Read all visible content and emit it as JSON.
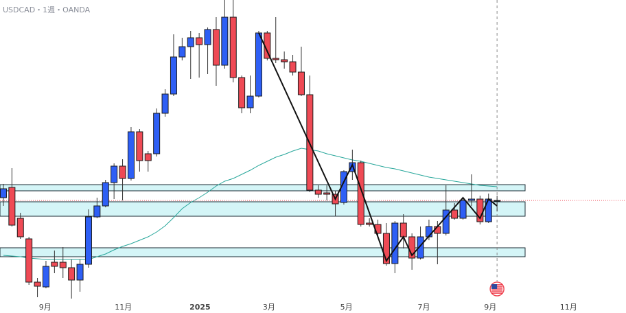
{
  "chart_data": {
    "type": "candlestick",
    "title": "USDCAD・1週・OANDA",
    "up_color": "#2e5ff5",
    "down_color": "#ef4a55",
    "ma_color": "#26a69a",
    "zone_color": "#d4f5f7",
    "xlim": [
      -0.4,
      73.15
    ],
    "ylim": [
      1.348,
      1.48
    ],
    "xticks": [
      {
        "value": 4.9,
        "label": "9月"
      },
      {
        "value": 14.1,
        "label": "11月"
      },
      {
        "value": 23.1,
        "label": "2025"
      },
      {
        "value": 31.2,
        "label": "3月"
      },
      {
        "value": 40.3,
        "label": "5月"
      },
      {
        "value": 49.4,
        "label": "7月"
      },
      {
        "value": 57.2,
        "label": "9月"
      },
      {
        "value": 66.4,
        "label": "11月"
      }
    ],
    "open": [
      1.3936,
      1.3981,
      1.3846,
      1.3756,
      1.3567,
      1.3546,
      1.3654,
      1.3654,
      1.363,
      1.3576,
      1.3645,
      1.3852,
      1.39,
      1.4002,
      1.4074,
      1.402,
      1.4224,
      1.4128,
      1.4128,
      1.4305,
      1.4389,
      1.4551,
      1.4596,
      1.4635,
      1.4605,
      1.4671,
      1.4515,
      1.4725,
      1.4461,
      1.4329,
      1.438,
      1.4656,
      1.4545,
      1.4539,
      1.453,
      1.4485,
      1.4386,
      1.3969,
      1.3957,
      1.3951,
      1.3915,
      1.405,
      1.4089,
      1.3825,
      1.3819,
      1.378,
      1.3648,
      1.3825,
      1.3765,
      1.3672,
      1.3765,
      1.381,
      1.378,
      1.3882,
      1.3846,
      1.3924,
      1.393,
      1.3831,
      1.3921
    ],
    "high": [
      1.3996,
      1.4065,
      1.387,
      1.3765,
      1.3585,
      1.366,
      1.3705,
      1.372,
      1.3666,
      1.3666,
      1.3885,
      1.3936,
      1.4014,
      1.4086,
      1.4104,
      1.4245,
      1.4236,
      1.414,
      1.4326,
      1.441,
      1.465,
      1.4635,
      1.4665,
      1.4656,
      1.468,
      1.4725,
      1.48,
      1.48,
      1.447,
      1.447,
      1.4665,
      1.4665,
      1.4725,
      1.4575,
      1.456,
      1.4596,
      1.447,
      1.399,
      1.399,
      1.3966,
      1.4056,
      1.4146,
      1.4098,
      1.3846,
      1.384,
      1.3825,
      1.3834,
      1.3864,
      1.378,
      1.381,
      1.384,
      1.3834,
      1.399,
      1.3912,
      1.3939,
      1.4038,
      1.3945,
      1.3954,
      1.3945
    ],
    "low": [
      1.39,
      1.381,
      1.3756,
      1.3555,
      1.3501,
      1.354,
      1.3606,
      1.3585,
      1.3495,
      1.3525,
      1.363,
      1.3846,
      1.3894,
      1.393,
      1.3924,
      1.4011,
      1.405,
      1.405,
      1.4116,
      1.429,
      1.438,
      1.4536,
      1.4455,
      1.4461,
      1.4476,
      1.4425,
      1.45,
      1.444,
      1.4305,
      1.4305,
      1.4374,
      1.4536,
      1.4524,
      1.45,
      1.447,
      1.438,
      1.396,
      1.3936,
      1.3924,
      1.3855,
      1.3906,
      1.4014,
      1.381,
      1.381,
      1.3765,
      1.3639,
      1.3606,
      1.3714,
      1.3621,
      1.3666,
      1.375,
      1.3645,
      1.3771,
      1.384,
      1.384,
      1.39,
      1.3819,
      1.3825,
      1.3876
    ],
    "close": [
      1.3975,
      1.3816,
      1.3765,
      1.3567,
      1.3549,
      1.3636,
      1.3636,
      1.363,
      1.3576,
      1.3645,
      1.3852,
      1.39,
      1.4002,
      1.4074,
      1.402,
      1.4224,
      1.4098,
      1.4098,
      1.4305,
      1.4389,
      1.4551,
      1.4596,
      1.4635,
      1.4605,
      1.4671,
      1.4515,
      1.4725,
      1.4461,
      1.4329,
      1.438,
      1.4656,
      1.4545,
      1.4539,
      1.453,
      1.4485,
      1.4386,
      1.3969,
      1.3951,
      1.3951,
      1.3909,
      1.405,
      1.4089,
      1.3819,
      1.3819,
      1.378,
      1.3648,
      1.3825,
      1.3765,
      1.3672,
      1.3765,
      1.381,
      1.378,
      1.3882,
      1.3846,
      1.3924,
      1.393,
      1.3831,
      1.393,
      1.3924
    ],
    "ma": [
      1.3684,
      1.3681,
      1.3678,
      1.3672,
      1.3669,
      1.3666,
      1.3666,
      1.3666,
      1.3666,
      1.3666,
      1.3666,
      1.3678,
      1.369,
      1.3708,
      1.3723,
      1.3735,
      1.375,
      1.3765,
      1.3786,
      1.3813,
      1.3849,
      1.3888,
      1.3915,
      1.3936,
      1.396,
      1.3987,
      1.4008,
      1.402,
      1.4038,
      1.4056,
      1.4077,
      1.4095,
      1.4113,
      1.4125,
      1.414,
      1.4152,
      1.4146,
      1.414,
      1.4128,
      1.4119,
      1.411,
      1.4101,
      1.4095,
      1.4086,
      1.4077,
      1.4068,
      1.4062,
      1.4053,
      1.4044,
      1.4035,
      1.4026,
      1.402,
      1.4014,
      1.4008,
      1.4002,
      1.3996,
      1.399,
      1.3987,
      1.3984
    ],
    "zones": [
      {
        "low": 1.3966,
        "high": 1.3993
      },
      {
        "low": 1.3855,
        "high": 1.3918
      },
      {
        "low": 1.3678,
        "high": 1.3717
      }
    ],
    "zigzag": [
      {
        "index": 30,
        "value": 1.4656
      },
      {
        "index": 39,
        "value": 1.393
      },
      {
        "index": 41,
        "value": 1.408
      },
      {
        "index": 45,
        "value": 1.366
      },
      {
        "index": 47,
        "value": 1.3765
      },
      {
        "index": 48,
        "value": 1.3684
      },
      {
        "index": 54,
        "value": 1.3936
      },
      {
        "index": 56,
        "value": 1.3846
      },
      {
        "index": 57,
        "value": 1.393
      },
      {
        "index": 58,
        "value": 1.39
      }
    ]
  }
}
